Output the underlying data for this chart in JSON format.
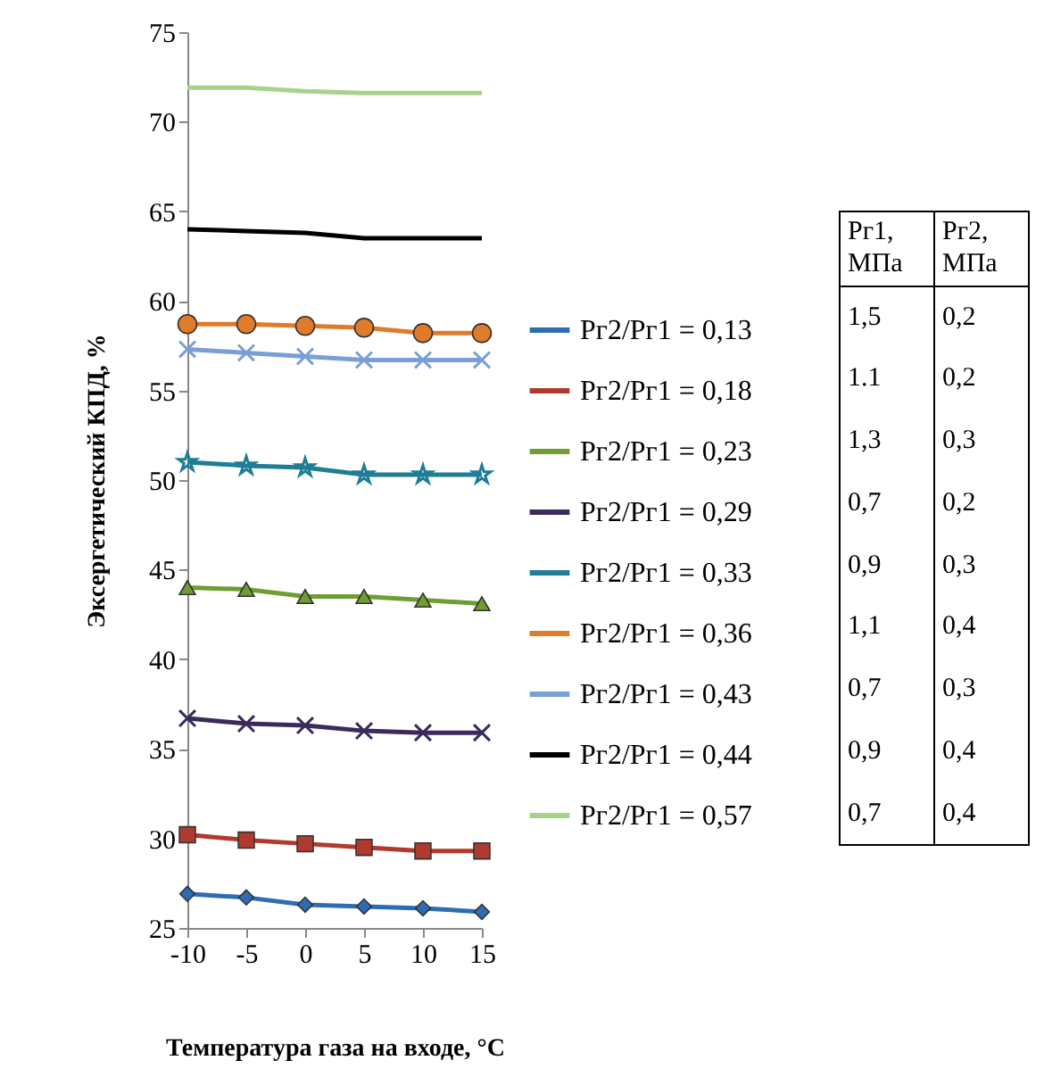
{
  "chart_data": {
    "type": "line",
    "xlabel": "Температура газа на входе, °С",
    "ylabel": "Эксергетический КПД, %",
    "x": [
      -10,
      -5,
      0,
      5,
      10,
      15
    ],
    "xlim": [
      -10,
      15
    ],
    "xticks": [
      -10,
      -5,
      0,
      5,
      10,
      15
    ],
    "ylim": [
      25,
      75
    ],
    "yticks": [
      25,
      30,
      35,
      40,
      45,
      50,
      55,
      60,
      65,
      70,
      75
    ],
    "grid": false,
    "legend": "right",
    "series": [
      {
        "name": "Рг2/Рг1 = 0,13",
        "color": "#2e6db4",
        "marker": "diamond",
        "values": [
          26.9,
          26.7,
          26.3,
          26.2,
          26.1,
          25.9
        ]
      },
      {
        "name": "Рг2/Рг1 = 0,18",
        "color": "#b03a2e",
        "marker": "square",
        "values": [
          30.2,
          29.9,
          29.7,
          29.5,
          29.3,
          29.3
        ]
      },
      {
        "name": "Рг2/Рг1 = 0,23",
        "color": "#6e9e32",
        "marker": "triangle",
        "values": [
          44.0,
          43.9,
          43.5,
          43.5,
          43.3,
          43.1
        ]
      },
      {
        "name": "Рг2/Рг1 = 0,29",
        "color": "#3b2a5c",
        "marker": "cross",
        "values": [
          36.7,
          36.4,
          36.3,
          36.0,
          35.9,
          35.9
        ]
      },
      {
        "name": "Рг2/Рг1 = 0,33",
        "color": "#1f7d96",
        "marker": "star",
        "values": [
          51.0,
          50.8,
          50.7,
          50.3,
          50.3,
          50.3
        ]
      },
      {
        "name": "Рг2/Рг1 = 0,36",
        "color": "#e07b2a",
        "marker": "circle",
        "values": [
          58.7,
          58.7,
          58.6,
          58.5,
          58.2,
          58.2
        ]
      },
      {
        "name": "Рг2/Рг1 = 0,43",
        "color": "#7a9fd6",
        "marker": "cross",
        "values": [
          57.3,
          57.1,
          56.9,
          56.7,
          56.7,
          56.7
        ]
      },
      {
        "name": "Рг2/Рг1 = 0,44",
        "color": "#000000",
        "marker": "none",
        "values": [
          64.0,
          63.9,
          63.8,
          63.5,
          63.5,
          63.5
        ]
      },
      {
        "name": "Рг2/Рг1 = 0,57",
        "color": "#a9d18e",
        "marker": "none",
        "values": [
          71.9,
          71.9,
          71.7,
          71.6,
          71.6,
          71.6
        ]
      }
    ],
    "annotations": [
      "Рг1, МПа",
      "Рг2, МПа",
      "1,5",
      "0,2",
      "1.1",
      "0,2",
      "1,3",
      "0,3",
      "0,7",
      "0,2",
      "0,9",
      "0,3",
      "1,1",
      "0,4",
      "0,7",
      "0,3",
      "0,9",
      "0,4",
      "0,7",
      "0,4"
    ]
  }
}
